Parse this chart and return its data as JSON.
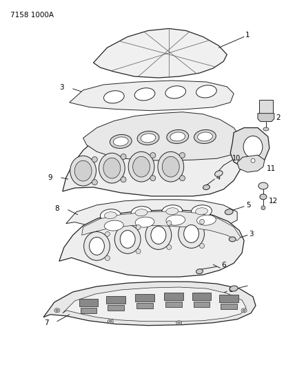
{
  "title_code": "7158 1000A",
  "bg_color": "#ffffff",
  "lc": "#222222",
  "tc": "#000000",
  "figsize": [
    4.28,
    5.33
  ],
  "dpi": 100
}
